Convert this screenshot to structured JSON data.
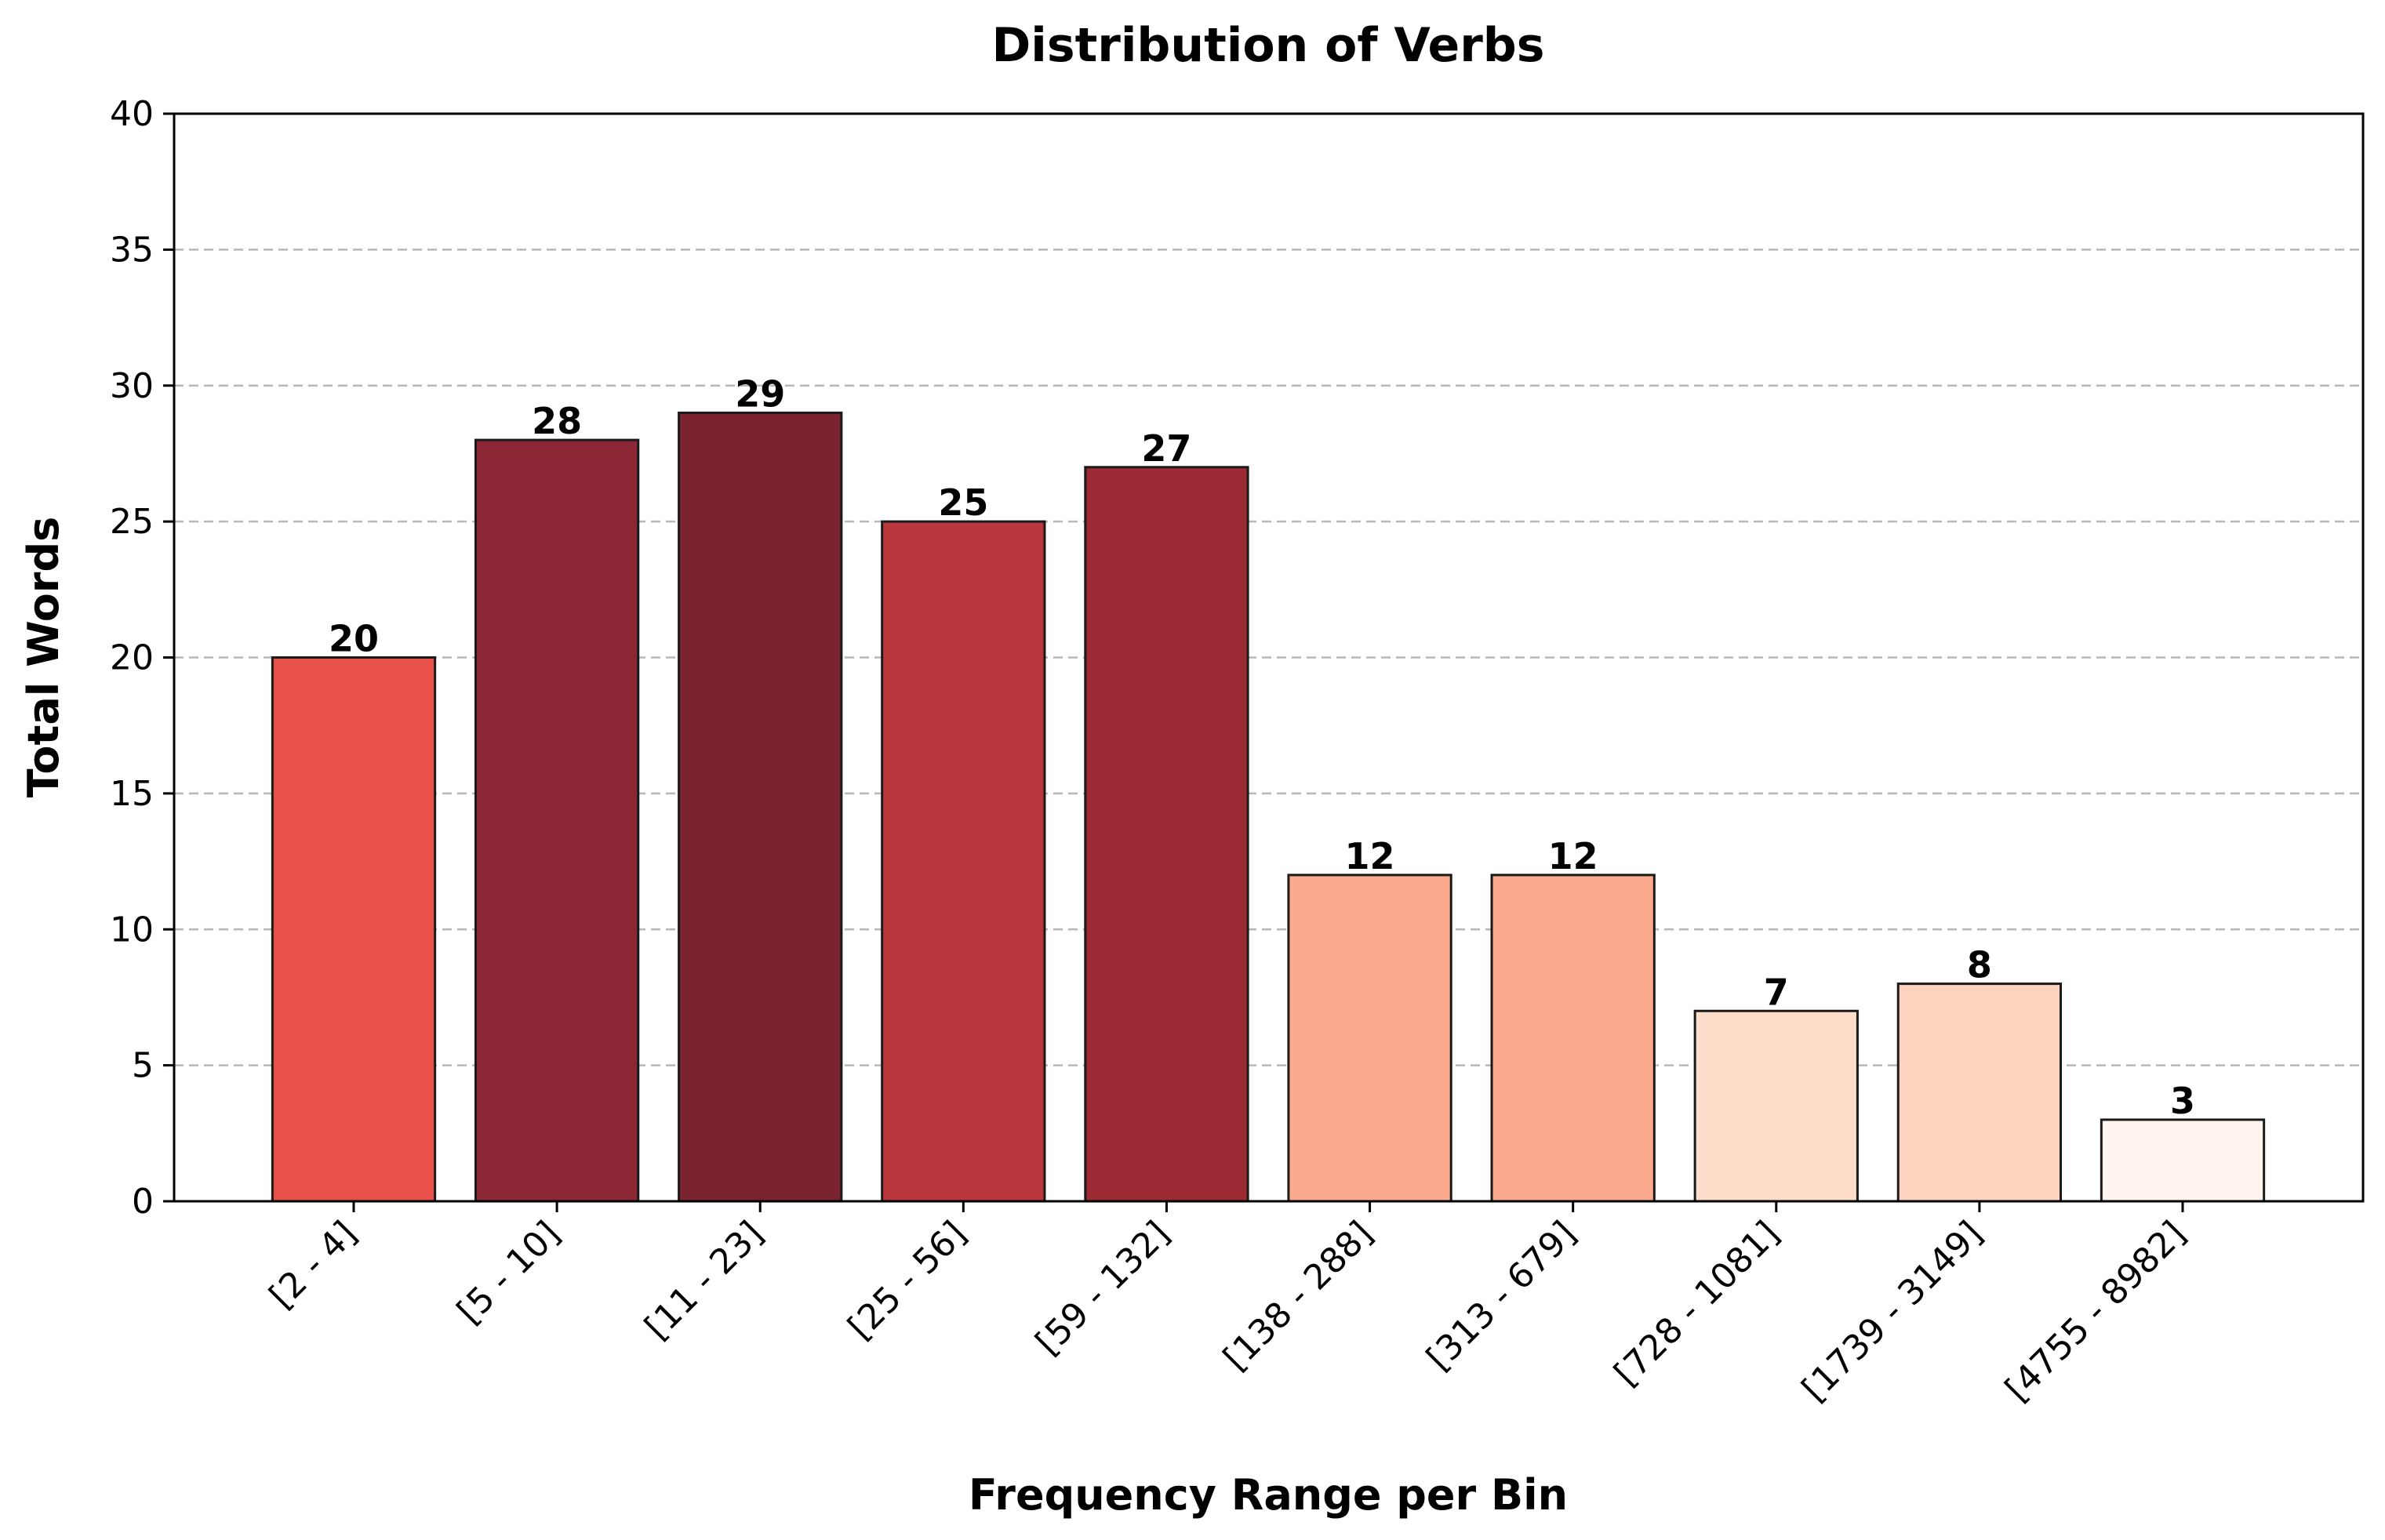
{
  "chart_data": {
    "type": "bar",
    "title": "Distribution of Verbs",
    "xlabel": "Frequency Range per Bin",
    "ylabel": "Total Words",
    "ylim": [
      0,
      40
    ],
    "yticks": [
      0,
      5,
      10,
      15,
      20,
      25,
      30,
      35,
      40
    ],
    "grid": "y-dashed",
    "categories": [
      "[2 - 4]",
      "[5 - 10]",
      "[11 - 23]",
      "[25 - 56]",
      "[59 - 132]",
      "[138 - 288]",
      "[313 - 679]",
      "[728 - 1081]",
      "[1739 - 3149]",
      "[4755 - 8982]"
    ],
    "values": [
      20,
      28,
      29,
      25,
      27,
      12,
      12,
      7,
      8,
      3
    ],
    "data_labels": [
      "20",
      "28",
      "29",
      "25",
      "27",
      "12",
      "12",
      "7",
      "8",
      "3"
    ],
    "colors": [
      "#e8504a",
      "#8c2835",
      "#7c2330",
      "#b8363c",
      "#9b2a35",
      "#faa98d",
      "#faa98d",
      "#fddcc9",
      "#fdd2bf",
      "#fff4ee"
    ]
  }
}
